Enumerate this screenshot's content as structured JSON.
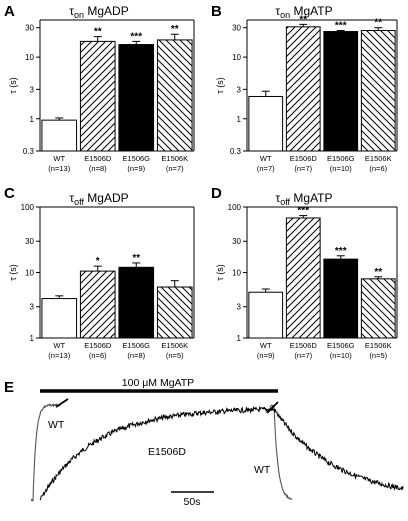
{
  "figure": {
    "panels": [
      {
        "id": "A",
        "title": {
          "symbol": "τ",
          "sub": "on",
          "suffix": " MgADP"
        },
        "ylabel": "τ (s)"
      },
      {
        "id": "B",
        "title": {
          "symbol": "τ",
          "sub": "on",
          "suffix": " MgATP"
        },
        "ylabel": "τ (s)"
      },
      {
        "id": "C",
        "title": {
          "symbol": "τ",
          "sub": "off",
          "suffix": " MgADP"
        },
        "ylabel": "τ (s)"
      },
      {
        "id": "D",
        "title": {
          "symbol": "τ",
          "sub": "off",
          "suffix": " MgATP"
        },
        "ylabel": "τ (s)"
      }
    ],
    "trace_panel": {
      "id": "E",
      "bar_label": "100 μM MgATP",
      "labels": [
        "WT",
        "E1506D",
        "WT"
      ],
      "scale_label": "50s"
    }
  },
  "chart_data": [
    {
      "type": "bar",
      "panel": "A",
      "yscale": "log",
      "ylim": [
        0.3,
        40
      ],
      "yticks": [
        0.3,
        1,
        3,
        10,
        30
      ],
      "yticklabels": [
        "0.3",
        "1",
        "3",
        "10",
        "30"
      ],
      "categories": [
        "WT",
        "E1506D",
        "E1506G",
        "E1506K"
      ],
      "n_labels": [
        "(n=13)",
        "(n=8)",
        "(n=9)",
        "(n=7)"
      ],
      "values": [
        0.95,
        18,
        16,
        19
      ],
      "errors": [
        0.08,
        3.5,
        2.0,
        4.5
      ],
      "fills": [
        "white",
        "hatch",
        "black",
        "hatch-rev"
      ],
      "significance": [
        "",
        "**",
        "***",
        "**"
      ]
    },
    {
      "type": "bar",
      "panel": "B",
      "yscale": "log",
      "ylim": [
        0.3,
        40
      ],
      "yticks": [
        0.3,
        1,
        3,
        10,
        30
      ],
      "yticklabels": [
        "0.3",
        "1",
        "3",
        "10",
        "30"
      ],
      "categories": [
        "WT",
        "E1506D",
        "E1506G",
        "E1506K"
      ],
      "n_labels": [
        "(n=7)",
        "(n=7)",
        "(n=10)",
        "(n=6)"
      ],
      "values": [
        2.3,
        31,
        26,
        27
      ],
      "errors": [
        0.5,
        3.0,
        1.0,
        3.0
      ],
      "fills": [
        "white",
        "hatch",
        "black",
        "hatch-rev"
      ],
      "significance": [
        "",
        "**",
        "***",
        "**"
      ]
    },
    {
      "type": "bar",
      "panel": "C",
      "yscale": "log",
      "ylim": [
        1,
        100
      ],
      "yticks": [
        1,
        3,
        10,
        30,
        100
      ],
      "yticklabels": [
        "1",
        "3",
        "10",
        "30",
        "100"
      ],
      "categories": [
        "WT",
        "E1506D",
        "E1506G",
        "E1506K"
      ],
      "n_labels": [
        "(n=13)",
        "(n=6)",
        "(n=8)",
        "(n=5)"
      ],
      "values": [
        4.0,
        10.5,
        12,
        6.0
      ],
      "errors": [
        0.4,
        2.0,
        2.0,
        1.5
      ],
      "fills": [
        "white",
        "hatch",
        "black",
        "hatch-rev"
      ],
      "significance": [
        "",
        "*",
        "**",
        ""
      ]
    },
    {
      "type": "bar",
      "panel": "D",
      "yscale": "log",
      "ylim": [
        1,
        100
      ],
      "yticks": [
        1,
        3,
        10,
        30,
        100
      ],
      "yticklabels": [
        "1",
        "3",
        "10",
        "30",
        "100"
      ],
      "categories": [
        "WT",
        "E1506D",
        "E1506G",
        "E1506K"
      ],
      "n_labels": [
        "(n=9)",
        "(n=7)",
        "(n=10)",
        "(n=5)"
      ],
      "values": [
        5.0,
        68,
        16,
        8.0
      ],
      "errors": [
        0.6,
        6.0,
        2.0,
        0.6
      ],
      "fills": [
        "white",
        "hatch",
        "black",
        "hatch-rev"
      ],
      "significance": [
        "",
        "***",
        "***",
        "**"
      ]
    }
  ]
}
